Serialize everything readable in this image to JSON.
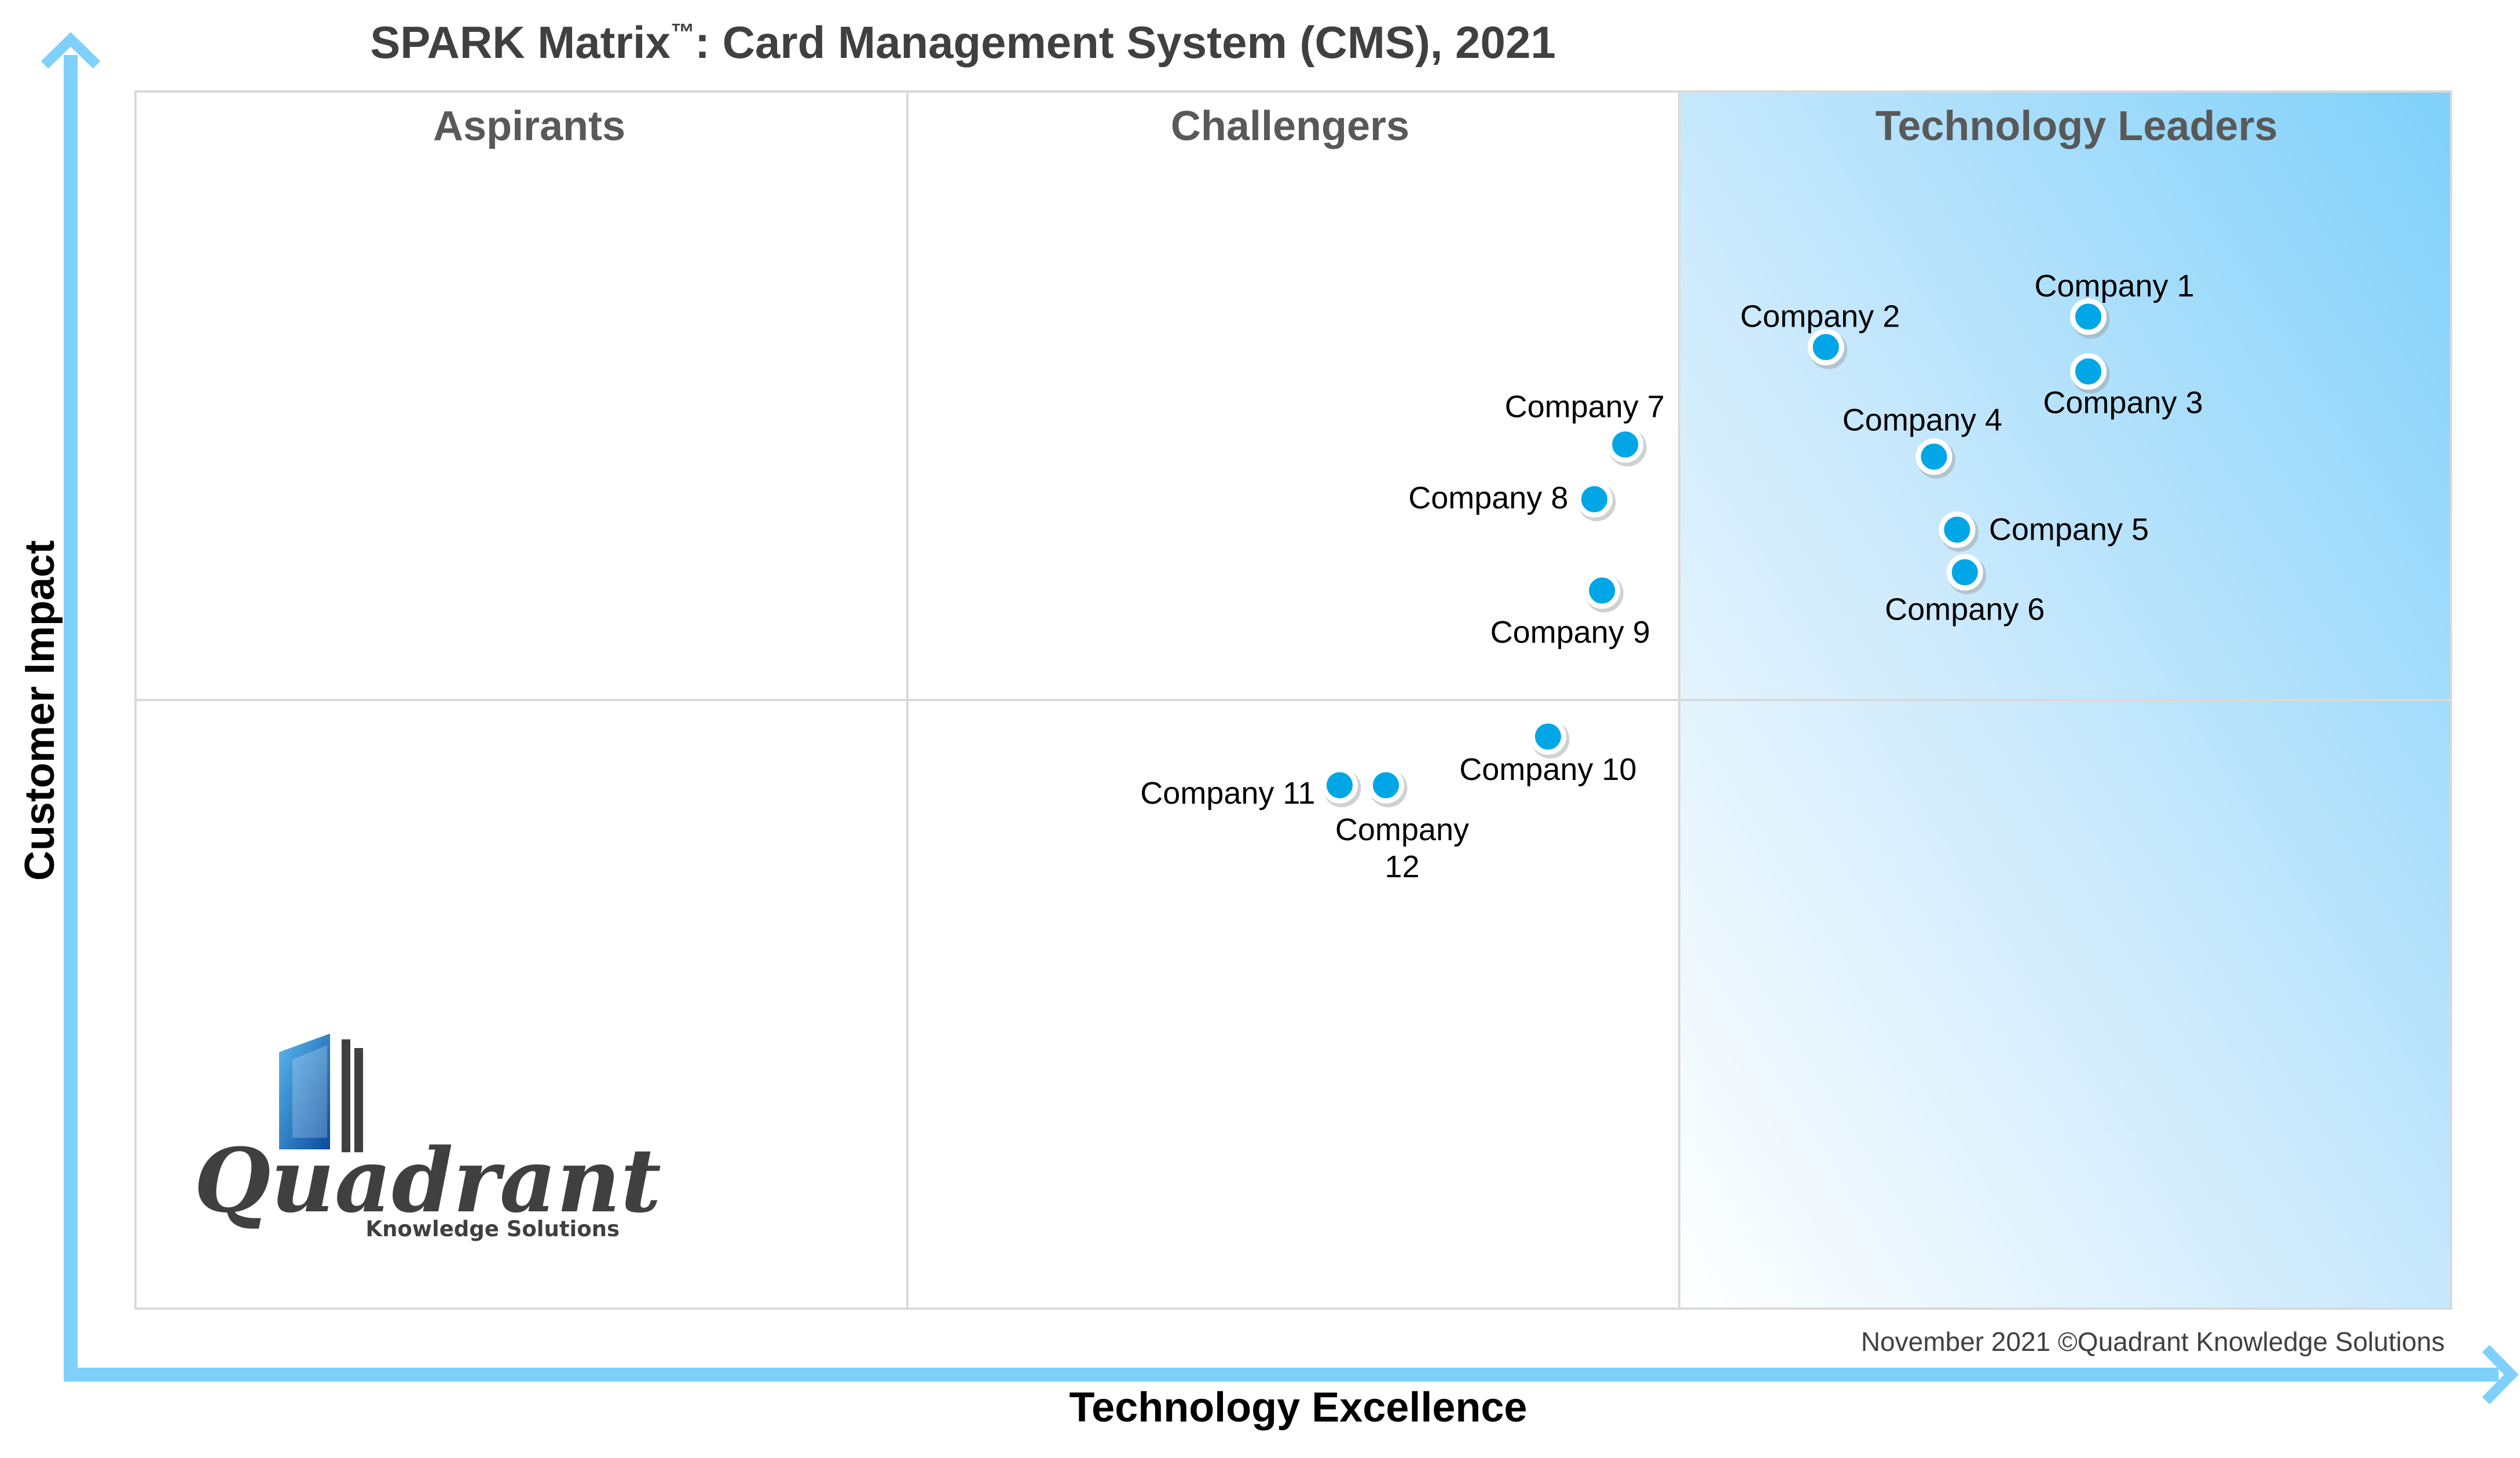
{
  "chart_data": {
    "type": "scatter",
    "title_main": "SPARK Matrix",
    "title_tm": "™",
    "title_rest": ": Card Management System (CMS), 2021",
    "xlabel": "Technology Excellence",
    "ylabel": "Customer Impact",
    "xlim": [
      0,
      3
    ],
    "ylim": [
      0,
      2
    ],
    "grid": true,
    "quadrants": [
      "Aspirants",
      "Challengers",
      "Technology Leaders"
    ],
    "points": [
      {
        "label": "Company 1",
        "x": 2.53,
        "y": 1.63
      },
      {
        "label": "Company 2",
        "x": 2.19,
        "y": 1.58
      },
      {
        "label": "Company 3",
        "x": 2.53,
        "y": 1.54
      },
      {
        "label": "Company 4",
        "x": 2.33,
        "y": 1.4
      },
      {
        "label": "Company 5",
        "x": 2.36,
        "y": 1.28
      },
      {
        "label": "Company 6",
        "x": 2.37,
        "y": 1.21
      },
      {
        "label": "Company 7",
        "x": 1.93,
        "y": 1.42
      },
      {
        "label": "Company 8",
        "x": 1.89,
        "y": 1.33
      },
      {
        "label": "Company 9",
        "x": 1.9,
        "y": 1.18
      },
      {
        "label": "Company 10",
        "x": 1.83,
        "y": 0.94
      },
      {
        "label": "Company 11",
        "x": 1.56,
        "y": 0.86
      },
      {
        "label": "Company 12",
        "x": 1.62,
        "y": 0.86
      }
    ],
    "colors": {
      "marker": "#00a6e6",
      "axis_arrow": "#7fd0fa",
      "leader_fill": "#7fd0fa"
    }
  },
  "footer": {
    "copyright": "November 2021 ©Quadrant Knowledge Solutions"
  },
  "logo": {
    "name": "Quadrant",
    "subtitle": "Knowledge Solutions"
  }
}
